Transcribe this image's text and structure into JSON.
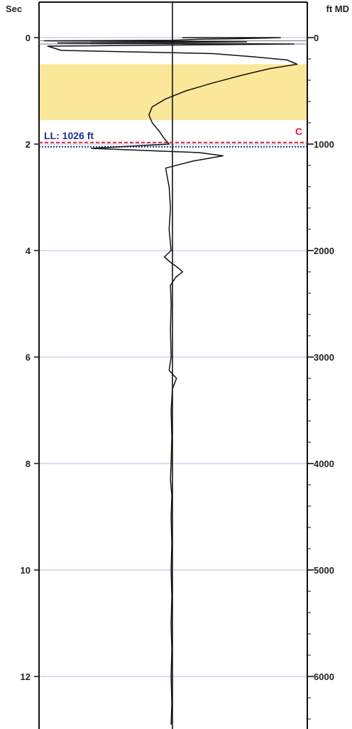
{
  "chart_data": {
    "type": "line",
    "left_axis": {
      "unit": "Sec",
      "ylim": [
        -0.6,
        12.9
      ],
      "ticks": [
        0,
        2,
        4,
        6,
        8,
        10,
        12
      ],
      "tick_labels": [
        "0",
        "2",
        "4",
        "6",
        "8",
        "10",
        "12"
      ],
      "gridlines_at": [
        0,
        2,
        4,
        6,
        8,
        10,
        12
      ]
    },
    "right_axis": {
      "unit": "ft MD",
      "ticks": [
        0,
        1000,
        2000,
        3000,
        4000,
        5000,
        6000
      ],
      "tick_labels": [
        "0",
        "1000",
        "2000",
        "3000",
        "4000",
        "5000",
        "6000"
      ],
      "minor_step": 200,
      "ft_per_sec": 500
    },
    "grid": true,
    "reference_lines": [
      {
        "label": "LL: 1026 ft",
        "sec": 2.05,
        "color": "#1f2f8a",
        "style": "dotted"
      },
      {
        "label": "C",
        "sec": 1.97,
        "color": "#e0203a",
        "style": "dashed"
      }
    ],
    "shaded_band": {
      "from_sec": 0.5,
      "to_sec": 1.55,
      "color": "#fbe79a"
    },
    "center_line_value": 0,
    "series": [
      {
        "points": [
          [
            0.15,
            0.0
          ],
          [
            1.6,
            0.0
          ],
          [
            1.0,
            0.02
          ],
          [
            0.4,
            0.03
          ],
          [
            0.0,
            0.05
          ],
          [
            -1.9,
            0.06
          ],
          [
            1.1,
            0.08
          ],
          [
            -1.7,
            0.1
          ],
          [
            1.8,
            0.12
          ],
          [
            -1.85,
            0.16
          ],
          [
            -1.65,
            0.24
          ],
          [
            0.6,
            0.3
          ],
          [
            1.2,
            0.36
          ],
          [
            1.7,
            0.42
          ],
          [
            1.85,
            0.5
          ],
          [
            1.45,
            0.58
          ],
          [
            1.05,
            0.7
          ],
          [
            0.6,
            0.85
          ],
          [
            0.2,
            1.0
          ],
          [
            -0.1,
            1.15
          ],
          [
            -0.3,
            1.3
          ],
          [
            -0.35,
            1.45
          ],
          [
            -0.3,
            1.6
          ],
          [
            -0.2,
            1.75
          ],
          [
            -0.12,
            1.9
          ],
          [
            -0.05,
            2.0
          ],
          [
            -1.2,
            2.08
          ],
          [
            -0.4,
            2.12
          ],
          [
            0.4,
            2.16
          ],
          [
            0.75,
            2.22
          ],
          [
            0.3,
            2.32
          ],
          [
            -0.1,
            2.45
          ],
          [
            -0.08,
            2.6
          ],
          [
            -0.05,
            2.8
          ],
          [
            -0.03,
            3.2
          ],
          [
            -0.05,
            3.6
          ],
          [
            -0.02,
            4.0
          ],
          [
            -0.12,
            4.12
          ],
          [
            -0.03,
            4.22
          ],
          [
            0.08,
            4.32
          ],
          [
            0.15,
            4.4
          ],
          [
            0.05,
            4.5
          ],
          [
            -0.03,
            4.65
          ],
          [
            -0.02,
            5.0
          ],
          [
            -0.03,
            5.5
          ],
          [
            -0.02,
            6.0
          ],
          [
            -0.05,
            6.25
          ],
          [
            0.06,
            6.4
          ],
          [
            0.0,
            6.6
          ],
          [
            -0.02,
            7.0
          ],
          [
            -0.01,
            7.5
          ],
          [
            -0.02,
            8.0
          ],
          [
            -0.03,
            8.3
          ],
          [
            -0.01,
            8.6
          ],
          [
            -0.02,
            9.0
          ],
          [
            -0.01,
            9.5
          ],
          [
            -0.02,
            10.0
          ],
          [
            -0.01,
            10.5
          ],
          [
            -0.02,
            11.0
          ],
          [
            -0.01,
            11.5
          ],
          [
            -0.02,
            12.0
          ],
          [
            -0.01,
            12.5
          ],
          [
            -0.02,
            12.9
          ]
        ]
      }
    ]
  }
}
